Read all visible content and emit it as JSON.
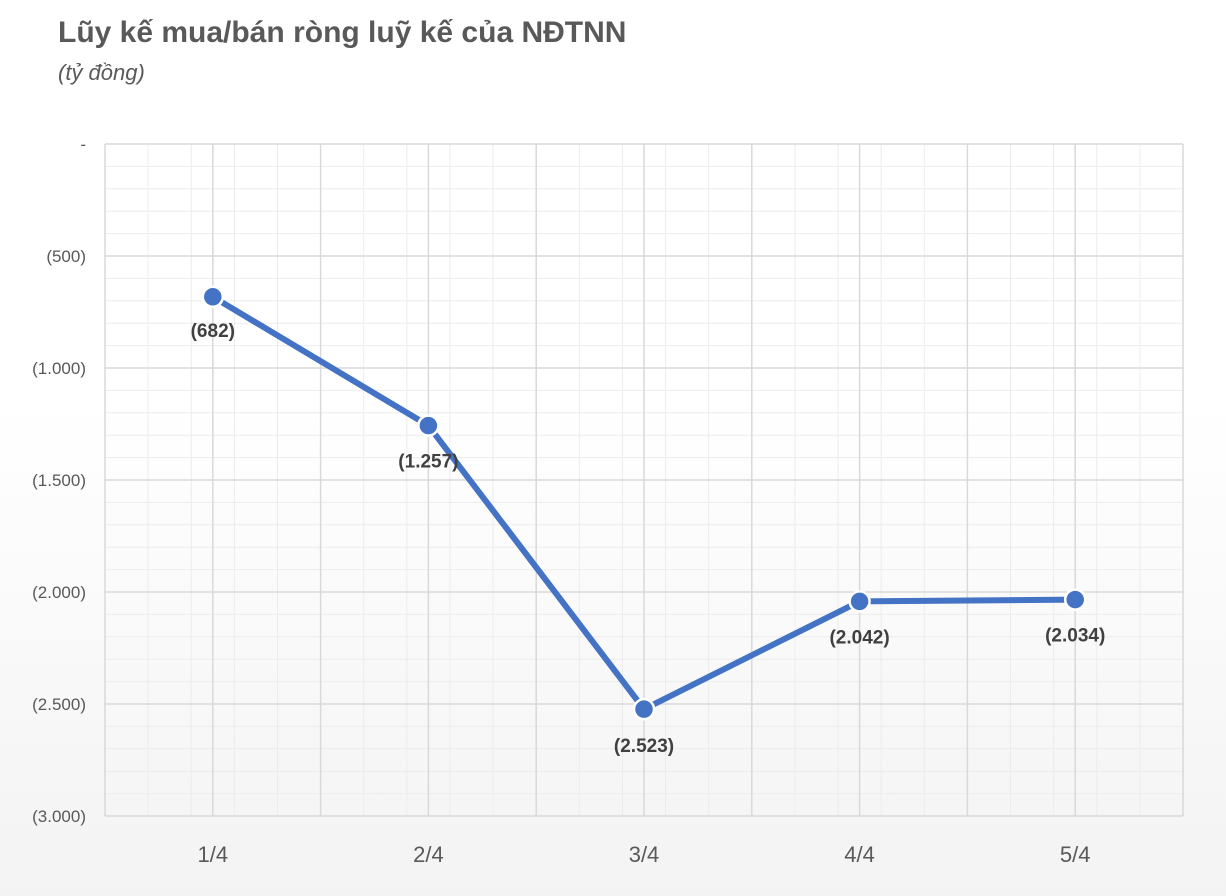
{
  "chart_data": {
    "type": "line",
    "title": "Lũy kế mua/bán ròng luỹ kế của NĐTNN",
    "subtitle": "(tỷ đồng)",
    "categories": [
      "1/4",
      "2/4",
      "3/4",
      "4/4",
      "5/4"
    ],
    "series": [
      {
        "values": [
          -682,
          -1257,
          -2523,
          -2042,
          -2034
        ],
        "labels": [
          "(682)",
          "(1.257)",
          "(2.523)",
          "(2.042)",
          "(2.034)"
        ],
        "color": "#4472C4"
      }
    ],
    "ylim": [
      -3000,
      0
    ],
    "y_ticks": [
      0,
      -500,
      -1000,
      -1500,
      -2000,
      -2500,
      -3000
    ],
    "y_tick_labels": [
      "-",
      "(500)",
      "(1.000)",
      "(1.500)",
      "(2.000)",
      "(2.500)",
      "(3.000)"
    ],
    "grid": true,
    "legend": "none",
    "colors": {
      "major_grid": "#d9d9d9",
      "minor_grid": "#ececec",
      "text": "#595959"
    }
  }
}
